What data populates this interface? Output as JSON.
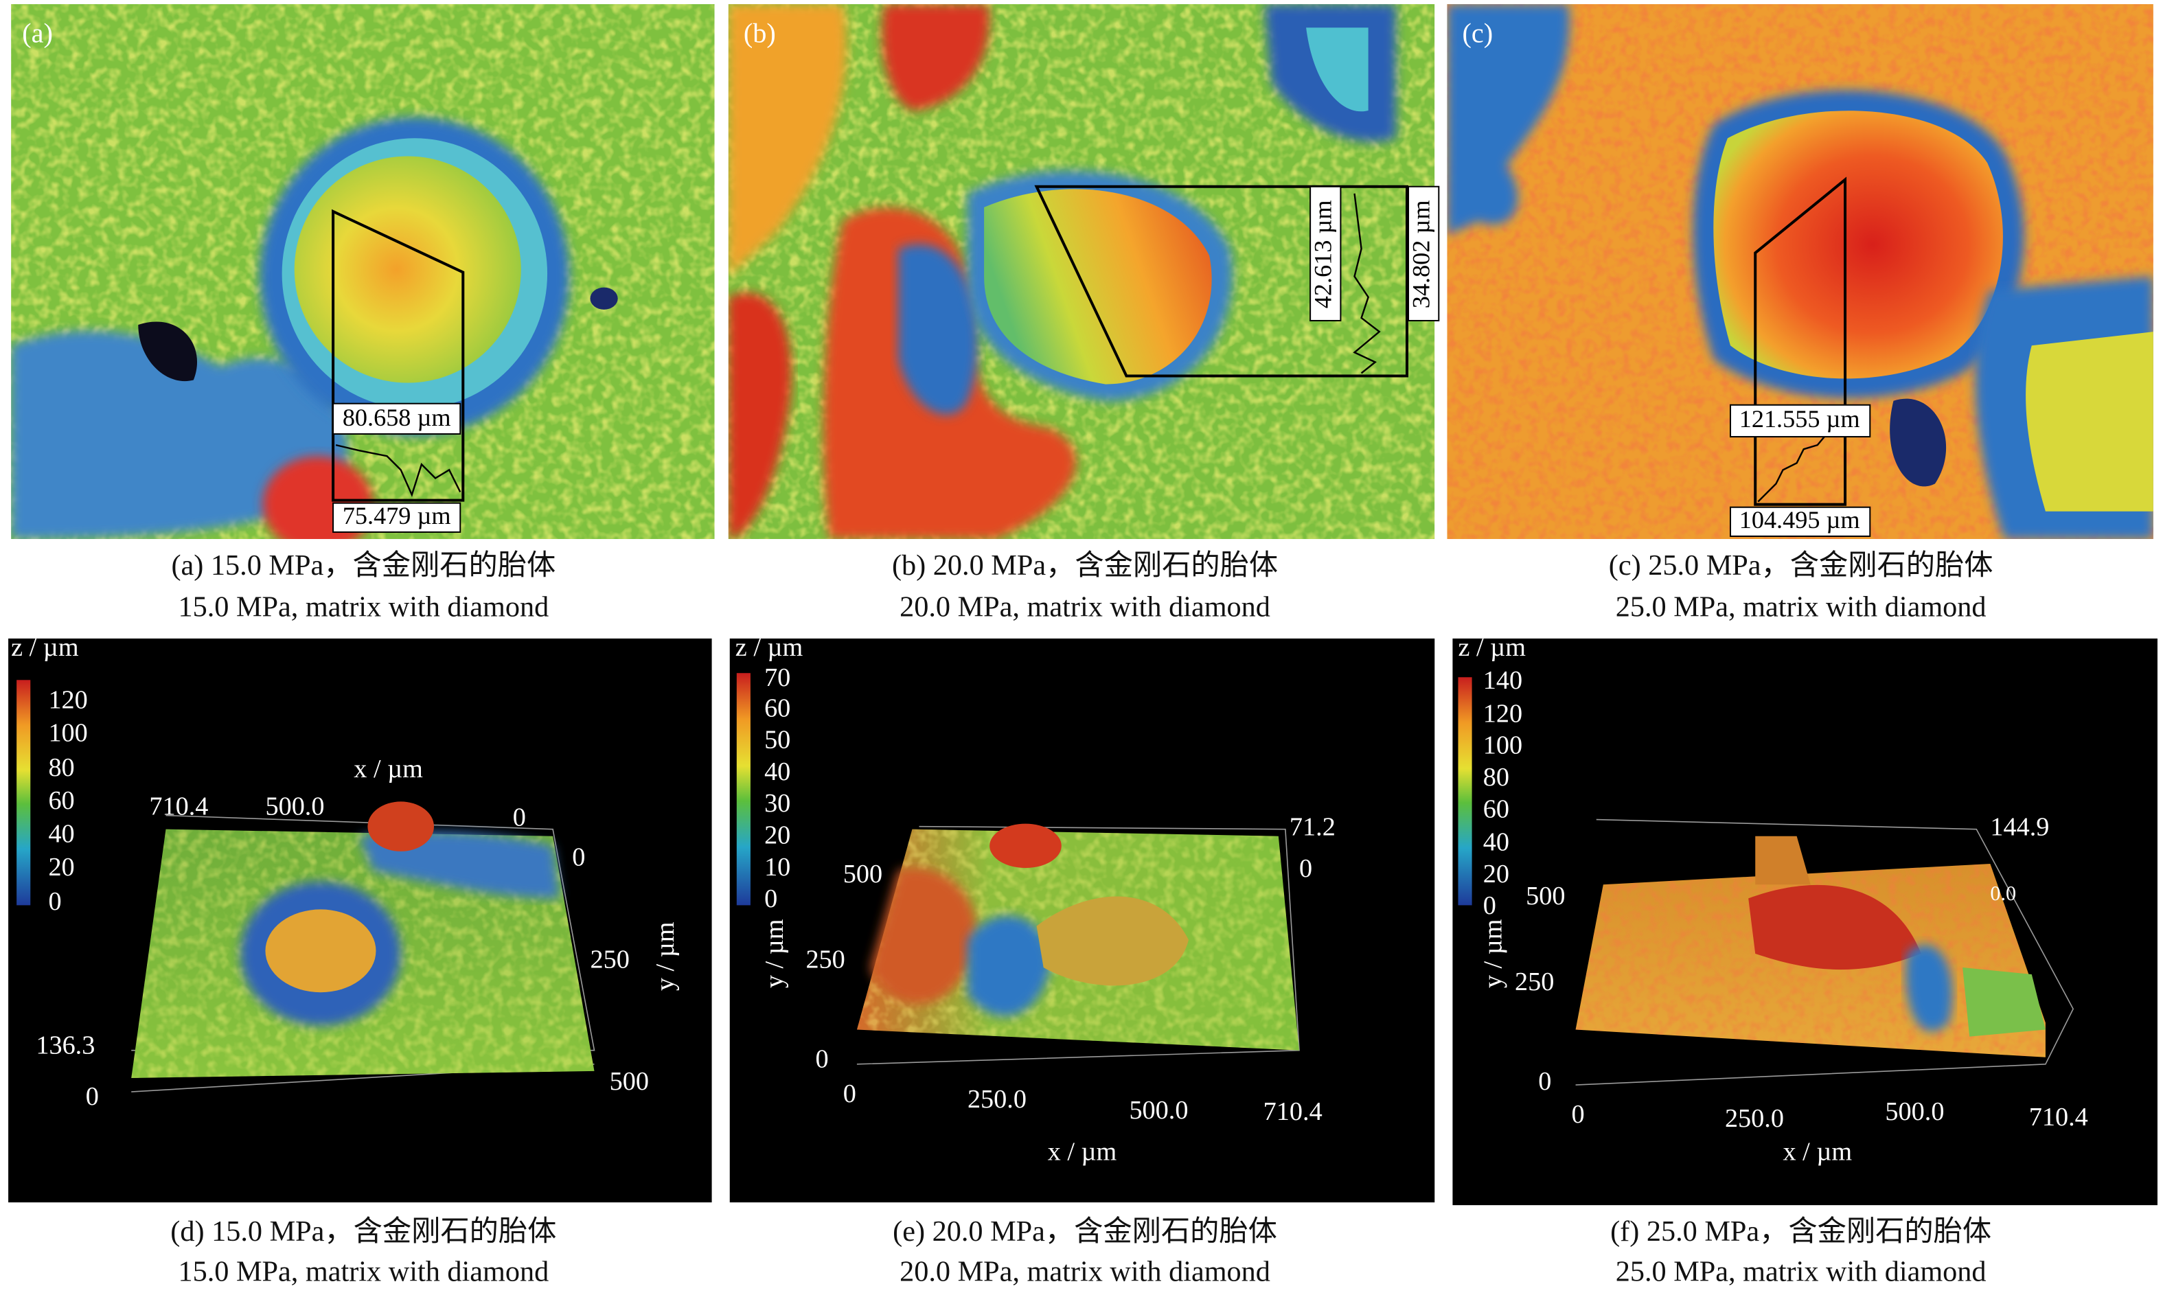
{
  "panels": [
    {
      "label": "(a)",
      "measurements": [
        "80.658 µm",
        "75.479 µm"
      ],
      "caption": [
        "(a) 15.0 MPa，含金刚石的胎体",
        "15.0 MPa, matrix with diamond"
      ]
    },
    {
      "label": "(b)",
      "measurements": [
        "42.613 µm",
        "34.802 µm"
      ],
      "caption": [
        "(b) 20.0 MPa，含金刚石的胎体",
        "20.0 MPa, matrix with diamond"
      ]
    },
    {
      "label": "(c)",
      "measurements": [
        "121.555 µm",
        "104.495 µm"
      ],
      "caption": [
        "(c) 25.0 MPa，含金刚石的胎体",
        "25.0 MPa, matrix with diamond"
      ]
    }
  ],
  "plots3d": [
    {
      "label": "(d)",
      "z_axis_label": "z / µm",
      "x_axis_label": "x / µm",
      "y_axis_label": "y / µm",
      "colorbar_ticks": [
        "120",
        "100",
        "80",
        "60",
        "40",
        "20",
        "0"
      ],
      "axis_texts": [
        "710.4",
        "500.0",
        "0",
        "0",
        "250",
        "500",
        "136.3",
        "0"
      ],
      "caption": [
        "(d) 15.0 MPa，含金刚石的胎体",
        "15.0 MPa, matrix with diamond"
      ]
    },
    {
      "label": "(e)",
      "z_axis_label": "z / µm",
      "x_axis_label": "x / µm",
      "y_axis_label": "y / µm",
      "colorbar_ticks": [
        "70",
        "60",
        "50",
        "40",
        "30",
        "20",
        "10",
        "0"
      ],
      "axis_texts": [
        "71.2",
        "0",
        "500",
        "250",
        "0",
        "0",
        "250.0",
        "500.0",
        "710.4"
      ],
      "caption": [
        "(e) 20.0 MPa，含金刚石的胎体",
        "20.0 MPa, matrix with diamond"
      ]
    },
    {
      "label": "(f)",
      "z_axis_label": "z / µm",
      "x_axis_label": "x / µm",
      "y_axis_label": "y / µm",
      "colorbar_ticks": [
        "140",
        "120",
        "100",
        "80",
        "60",
        "40",
        "20",
        "0"
      ],
      "axis_texts": [
        "144.9",
        "0.0",
        "500",
        "250",
        "0",
        "0",
        "250.0",
        "500.0",
        "710.4"
      ],
      "caption": [
        "(f) 25.0 MPa，含金刚石的胎体",
        "25.0 MPa, matrix with diamond"
      ]
    }
  ]
}
